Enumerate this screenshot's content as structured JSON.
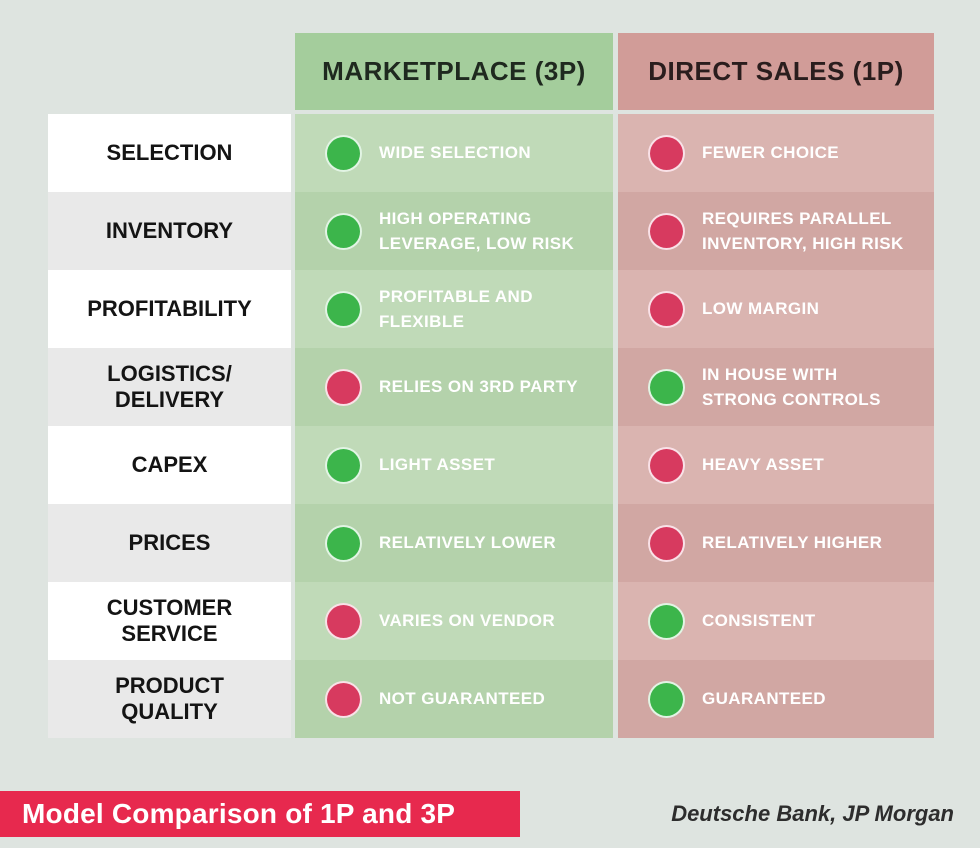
{
  "header": {
    "columns": [
      {
        "label": "MARKETPLACE (3P)"
      },
      {
        "label": "DIRECT SALES (1P)"
      }
    ]
  },
  "rows": [
    {
      "label": "SELECTION",
      "marketplace": {
        "dot": "green",
        "text": "WIDE SELECTION"
      },
      "direct": {
        "dot": "red",
        "text": "FEWER CHOICE"
      }
    },
    {
      "label": "INVENTORY",
      "marketplace": {
        "dot": "green",
        "text": "HIGH OPERATING LEVERAGE, LOW RISK"
      },
      "direct": {
        "dot": "red",
        "text": "REQUIRES PARALLEL INVENTORY, HIGH RISK"
      }
    },
    {
      "label": "PROFITABILITY",
      "marketplace": {
        "dot": "green",
        "text": "PROFITABLE AND FLEXIBLE"
      },
      "direct": {
        "dot": "red",
        "text": "LOW MARGIN"
      }
    },
    {
      "label": "LOGISTICS/ DELIVERY",
      "marketplace": {
        "dot": "red",
        "text": "RELIES ON 3RD PARTY"
      },
      "direct": {
        "dot": "green",
        "text": "IN HOUSE WITH STRONG CONTROLS"
      }
    },
    {
      "label": "CAPEX",
      "marketplace": {
        "dot": "green",
        "text": "LIGHT ASSET"
      },
      "direct": {
        "dot": "red",
        "text": "HEAVY ASSET"
      }
    },
    {
      "label": "PRICES",
      "marketplace": {
        "dot": "green",
        "text": "RELATIVELY LOWER"
      },
      "direct": {
        "dot": "red",
        "text": "RELATIVELY HIGHER"
      }
    },
    {
      "label": "CUSTOMER SERVICE",
      "marketplace": {
        "dot": "red",
        "text": "VARIES ON VENDOR"
      },
      "direct": {
        "dot": "green",
        "text": "CONSISTENT"
      }
    },
    {
      "label": "PRODUCT QUALITY",
      "marketplace": {
        "dot": "red",
        "text": "NOT GUARANTEED"
      },
      "direct": {
        "dot": "green",
        "text": "GUARANTEED"
      }
    }
  ],
  "footer": {
    "title": "Model Comparison of 1P and 3P",
    "source": "Deutsche Bank, JP Morgan"
  },
  "colors": {
    "positive_dot": "#3cb54b",
    "negative_dot": "#d73a5f",
    "banner": "#e7294e",
    "marketplace_header": "#a4cd9c",
    "direct_sales_header": "#d19c98",
    "page_background": "#dee4e0"
  }
}
